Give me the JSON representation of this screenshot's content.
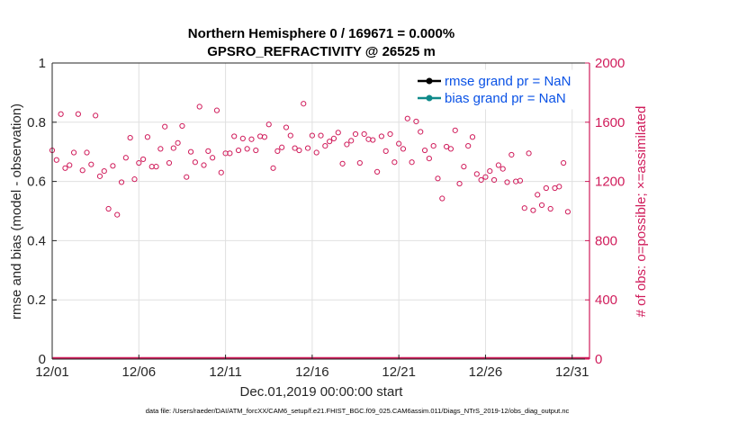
{
  "chart_data": {
    "type": "scatter",
    "title_line1": "Northern Hemisphere 0 / 169671 = 0.000%",
    "title_line2": "GPSRO_REFRACTIVITY @ 26525 m",
    "xlabel": "Dec.01,2019 00:00:00 start",
    "ylabel_left": "rmse and bias (model - observation)",
    "ylabel_right": "# of obs: o=possible; ×=assimilated",
    "xlim": [
      1,
      32
    ],
    "ylim_left": [
      0,
      1
    ],
    "ylim_right": [
      0,
      2000
    ],
    "x_ticks": [
      1,
      6,
      11,
      16,
      21,
      26,
      31
    ],
    "x_tick_labels": [
      "12/01",
      "12/06",
      "12/11",
      "12/16",
      "12/21",
      "12/26",
      "12/31"
    ],
    "y_ticks_left": [
      0,
      0.2,
      0.4,
      0.6,
      0.8,
      1
    ],
    "y_tick_labels_left": [
      "0",
      "0.2",
      "0.4",
      "0.6",
      "0.8",
      "1"
    ],
    "y_ticks_right": [
      0,
      400,
      800,
      1200,
      1600,
      2000
    ],
    "y_tick_labels_right": [
      "0",
      "400",
      "800",
      "1200",
      "1600",
      "2000"
    ],
    "grid": true,
    "legend_position": "top-right",
    "legend": [
      {
        "label": "rmse grand pr = NaN",
        "color": "#000000"
      },
      {
        "label": "bias grand pr = NaN",
        "color": "#0f8a8a"
      }
    ],
    "colors": {
      "possible": "#d01c5b",
      "axis": "#262626",
      "grid": "#e0e0e0"
    },
    "series": [
      {
        "name": "possible",
        "axis": "right",
        "marker": "circle",
        "points": [
          [
            1.0,
            1410
          ],
          [
            1.25,
            1345
          ],
          [
            1.5,
            1655
          ],
          [
            1.75,
            1290
          ],
          [
            2.0,
            1310
          ],
          [
            2.25,
            1395
          ],
          [
            2.5,
            1655
          ],
          [
            2.75,
            1275
          ],
          [
            3.0,
            1395
          ],
          [
            3.25,
            1315
          ],
          [
            3.5,
            1645
          ],
          [
            3.75,
            1235
          ],
          [
            4.0,
            1270
          ],
          [
            4.25,
            1015
          ],
          [
            4.5,
            1305
          ],
          [
            4.75,
            975
          ],
          [
            5.0,
            1195
          ],
          [
            5.25,
            1360
          ],
          [
            5.5,
            1495
          ],
          [
            5.75,
            1215
          ],
          [
            6.0,
            1325
          ],
          [
            6.25,
            1350
          ],
          [
            6.5,
            1500
          ],
          [
            6.75,
            1300
          ],
          [
            7.0,
            1300
          ],
          [
            7.25,
            1420
          ],
          [
            7.5,
            1570
          ],
          [
            7.75,
            1325
          ],
          [
            8.0,
            1425
          ],
          [
            8.25,
            1460
          ],
          [
            8.5,
            1575
          ],
          [
            8.75,
            1230
          ],
          [
            9.0,
            1400
          ],
          [
            9.25,
            1330
          ],
          [
            9.5,
            1705
          ],
          [
            9.75,
            1310
          ],
          [
            10.0,
            1405
          ],
          [
            10.25,
            1360
          ],
          [
            10.5,
            1680
          ],
          [
            10.75,
            1260
          ],
          [
            11.0,
            1390
          ],
          [
            11.25,
            1390
          ],
          [
            11.5,
            1505
          ],
          [
            11.75,
            1410
          ],
          [
            12.0,
            1490
          ],
          [
            12.25,
            1420
          ],
          [
            12.5,
            1485
          ],
          [
            12.75,
            1410
          ],
          [
            13.0,
            1505
          ],
          [
            13.25,
            1500
          ],
          [
            13.5,
            1585
          ],
          [
            13.75,
            1290
          ],
          [
            14.0,
            1405
          ],
          [
            14.25,
            1430
          ],
          [
            14.5,
            1565
          ],
          [
            14.75,
            1510
          ],
          [
            15.0,
            1425
          ],
          [
            15.25,
            1410
          ],
          [
            15.5,
            1725
          ],
          [
            15.75,
            1425
          ],
          [
            16.0,
            1510
          ],
          [
            16.25,
            1395
          ],
          [
            16.5,
            1510
          ],
          [
            16.75,
            1440
          ],
          [
            17.0,
            1470
          ],
          [
            17.25,
            1490
          ],
          [
            17.5,
            1530
          ],
          [
            17.75,
            1320
          ],
          [
            18.0,
            1450
          ],
          [
            18.25,
            1475
          ],
          [
            18.5,
            1520
          ],
          [
            18.75,
            1325
          ],
          [
            19.0,
            1520
          ],
          [
            19.25,
            1485
          ],
          [
            19.5,
            1480
          ],
          [
            19.75,
            1265
          ],
          [
            20.0,
            1505
          ],
          [
            20.25,
            1405
          ],
          [
            20.5,
            1520
          ],
          [
            20.75,
            1330
          ],
          [
            21.0,
            1455
          ],
          [
            21.25,
            1420
          ],
          [
            21.5,
            1625
          ],
          [
            21.75,
            1330
          ],
          [
            22.0,
            1605
          ],
          [
            22.25,
            1535
          ],
          [
            22.5,
            1410
          ],
          [
            22.75,
            1355
          ],
          [
            23.0,
            1440
          ],
          [
            23.25,
            1220
          ],
          [
            23.5,
            1085
          ],
          [
            23.75,
            1435
          ],
          [
            24.0,
            1420
          ],
          [
            24.25,
            1545
          ],
          [
            24.5,
            1185
          ],
          [
            24.75,
            1300
          ],
          [
            25.0,
            1440
          ],
          [
            25.25,
            1500
          ],
          [
            25.5,
            1250
          ],
          [
            25.75,
            1210
          ],
          [
            26.0,
            1230
          ],
          [
            26.25,
            1270
          ],
          [
            26.5,
            1210
          ],
          [
            26.75,
            1310
          ],
          [
            27.0,
            1285
          ],
          [
            27.25,
            1195
          ],
          [
            27.5,
            1380
          ],
          [
            27.75,
            1200
          ],
          [
            28.0,
            1205
          ],
          [
            28.25,
            1020
          ],
          [
            28.5,
            1390
          ],
          [
            28.75,
            1005
          ],
          [
            29.0,
            1110
          ],
          [
            29.25,
            1040
          ],
          [
            29.5,
            1155
          ],
          [
            29.75,
            1015
          ],
          [
            30.0,
            1155
          ],
          [
            30.25,
            1165
          ],
          [
            30.5,
            1325
          ],
          [
            30.75,
            995
          ]
        ]
      }
    ],
    "footnote": "data file: /Users/raeder/DAI/ATM_forcXX/CAM6_setup/f.e21.FHIST_BGC.f09_025.CAM6assim.011/Diags_NTrS_2019-12/obs_diag_output.nc"
  }
}
